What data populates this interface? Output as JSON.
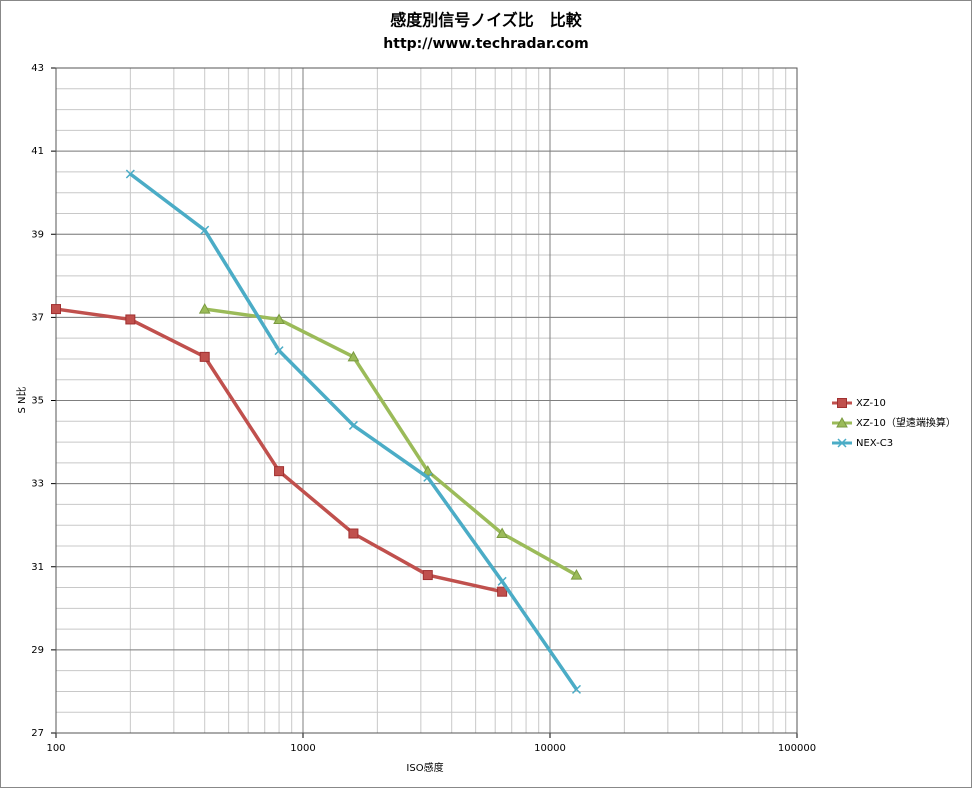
{
  "chart_data": {
    "type": "line",
    "title": "感度別信号ノイズ比　比較",
    "subtitle": "http://www.techradar.com",
    "x_label": "ISO感度",
    "y_label": "S N比",
    "xscale": "log",
    "xlim": [
      100,
      100000
    ],
    "xticks": [
      100,
      1000,
      10000,
      100000
    ],
    "ylim": [
      27,
      43
    ],
    "yticks": [
      27,
      29,
      31,
      33,
      35,
      37,
      39,
      41,
      43
    ],
    "y_minor_step": 0.5,
    "grid": true,
    "legend": "right",
    "series": [
      {
        "name": "XZ-10",
        "color": "#c0504d",
        "marker": "square",
        "x": [
          100,
          200,
          400,
          800,
          1600,
          3200,
          6400
        ],
        "values": [
          37.2,
          36.95,
          36.05,
          33.3,
          31.8,
          30.8,
          30.4
        ]
      },
      {
        "name": "XZ-10（望遠端換算）",
        "color": "#9bbb59",
        "marker": "triangle",
        "x": [
          400,
          800,
          1600,
          3200,
          6400,
          12800
        ],
        "values": [
          37.2,
          36.95,
          36.05,
          33.3,
          31.8,
          30.8
        ]
      },
      {
        "name": "NEX-C3",
        "color": "#4bacc6",
        "marker": "x",
        "x": [
          200,
          400,
          800,
          1600,
          3200,
          6400,
          12800
        ],
        "values": [
          40.45,
          39.1,
          36.2,
          34.4,
          33.15,
          30.65,
          28.05
        ]
      }
    ]
  }
}
